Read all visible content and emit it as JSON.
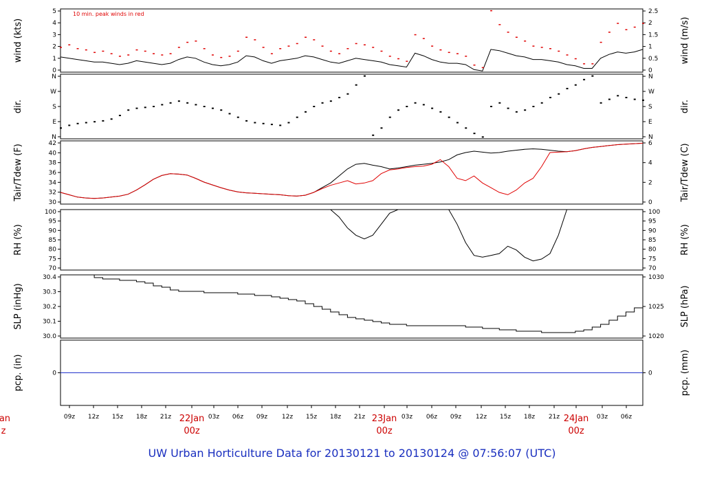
{
  "chart_data": {
    "type": "line",
    "title": "UW Urban Horticulture Data for 20130121  to  20130124 @ 07:56:07  (UTC)",
    "x_tick_labels": [
      "09z",
      "12z",
      "15z",
      "18z",
      "21z",
      "03z",
      "06z",
      "09z",
      "12z",
      "15z",
      "18z",
      "21z",
      "03z",
      "06z",
      "09z",
      "12z",
      "15z",
      "18z",
      "21z",
      "03z",
      "06z"
    ],
    "day_labels": [
      {
        "date": "22Jan",
        "hour": "00z"
      },
      {
        "date": "23Jan",
        "hour": "00z"
      },
      {
        "date": "24Jan",
        "hour": "00z"
      }
    ],
    "left_edge_label": {
      "date": "Jan",
      "hour": "z"
    },
    "panels": [
      {
        "id": "wind",
        "ylabel": "wind (kts)",
        "ylabel_right": "wind (m/s)",
        "annotation": "10 min. peak winds in red",
        "yticks": [
          "0",
          "1",
          "2",
          "3",
          "4",
          "5"
        ],
        "yticks_right": [
          "0",
          "0.5",
          "1",
          "1.5",
          "2",
          "2.5"
        ],
        "ylim": [
          0,
          5
        ],
        "series": [
          {
            "values": [
              1.2,
              1.1,
              1.0,
              0.9,
              0.8,
              0.8,
              0.7,
              0.6,
              0.7,
              0.9,
              0.8,
              0.7,
              0.6,
              0.7,
              1.0,
              1.2,
              1.1,
              0.8,
              0.6,
              0.5,
              0.6,
              0.8,
              1.3,
              1.2,
              0.9,
              0.7,
              0.9,
              1.0,
              1.1,
              1.3,
              1.2,
              1.0,
              0.8,
              0.7,
              0.9,
              1.1,
              1.0,
              0.9,
              0.8,
              0.6,
              0.5,
              0.4,
              1.5,
              1.3,
              1.0,
              0.8,
              0.7,
              0.7,
              0.6,
              0.2,
              0.1,
              1.8,
              1.7,
              1.5,
              1.3,
              1.2,
              1.0,
              1.0,
              0.9,
              0.8,
              0.6,
              0.5,
              0.3,
              0.3,
              1.1,
              1.4,
              1.6,
              1.5,
              1.6,
              1.8
            ]
          },
          {
            "values": [
              2.0,
              2.2,
              1.9,
              1.8,
              1.6,
              1.7,
              1.5,
              1.3,
              1.4,
              1.8,
              1.7,
              1.5,
              1.4,
              1.5,
              2.0,
              2.4,
              2.5,
              1.9,
              1.4,
              1.2,
              1.3,
              1.7,
              2.8,
              2.6,
              2.0,
              1.5,
              1.9,
              2.1,
              2.3,
              2.8,
              2.6,
              2.1,
              1.7,
              1.5,
              1.9,
              2.3,
              2.2,
              2.0,
              1.7,
              1.3,
              1.1,
              0.9,
              3.0,
              2.7,
              2.1,
              1.8,
              1.6,
              1.5,
              1.3,
              0.6,
              0.4,
              4.9,
              3.8,
              3.2,
              2.8,
              2.5,
              2.1,
              2.0,
              1.9,
              1.7,
              1.4,
              1.1,
              0.7,
              0.7,
              2.4,
              3.2,
              3.9,
              3.4,
              3.6,
              3.9
            ]
          }
        ]
      },
      {
        "id": "dir",
        "ylabel": "dir.",
        "ylabel_right": "dir.",
        "yticks": [
          "N",
          "E",
          "S",
          "W",
          "N"
        ],
        "ylim": [
          0,
          360
        ],
        "series": [
          {
            "values": [
              60,
              75,
              85,
              90,
              95,
              100,
              110,
              130,
              160,
              170,
              175,
              180,
              190,
              200,
              210,
              200,
              190,
              180,
              170,
              160,
              140,
              120,
              100,
              90,
              85,
              80,
              75,
              90,
              120,
              150,
              180,
              200,
              210,
              230,
              250,
              300,
              350,
              20,
              60,
              120,
              160,
              180,
              200,
              190,
              170,
              150,
              120,
              90,
              60,
              30,
              10,
              180,
              200,
              170,
              150,
              160,
              180,
              200,
              230,
              250,
              280,
              300,
              330,
              350,
              200,
              220,
              240,
              230,
              220,
              215
            ]
          }
        ]
      },
      {
        "id": "temp",
        "ylabel": "Tair/Tdew (F)",
        "ylabel_right": "Tair/Tdew (C)",
        "yticks": [
          "30",
          "32",
          "34",
          "36",
          "38",
          "40",
          "42"
        ],
        "yticks_right": [
          "0",
          "2",
          "4",
          "6"
        ],
        "ylim": [
          29.5,
          43
        ],
        "series": [
          {
            "values": [
              32.0,
              31.5,
              31.0,
              30.8,
              30.7,
              30.8,
              31.0,
              31.2,
              31.6,
              32.5,
              33.6,
              34.8,
              35.6,
              36.0,
              35.9,
              35.7,
              35.0,
              34.2,
              33.6,
              33.0,
              32.5,
              32.1,
              31.9,
              31.8,
              31.7,
              31.6,
              31.5,
              31.3,
              31.2,
              31.4,
              32.0,
              33.0,
              34.0,
              35.5,
              37.0,
              38.0,
              38.2,
              37.8,
              37.5,
              37.0,
              37.2,
              37.5,
              37.8,
              38.0,
              38.2,
              38.5,
              39.0,
              40.0,
              40.5,
              40.8,
              40.6,
              40.4,
              40.5,
              40.8,
              41.0,
              41.2,
              41.3,
              41.2,
              41.0,
              40.8,
              40.7,
              40.9,
              41.3,
              41.6,
              41.8,
              42.0,
              42.2,
              42.3,
              42.4,
              42.5
            ]
          },
          {
            "values": [
              32.0,
              31.5,
              31.0,
              30.8,
              30.7,
              30.8,
              31.0,
              31.2,
              31.6,
              32.5,
              33.6,
              34.8,
              35.6,
              36.0,
              35.9,
              35.7,
              35.0,
              34.2,
              33.6,
              33.0,
              32.5,
              32.1,
              31.9,
              31.8,
              31.7,
              31.6,
              31.5,
              31.3,
              31.2,
              31.4,
              32.0,
              32.8,
              33.5,
              34.0,
              34.5,
              33.8,
              34.0,
              34.5,
              36.0,
              36.8,
              37.0,
              37.3,
              37.5,
              37.6,
              38.0,
              39.0,
              37.5,
              35.0,
              34.5,
              35.5,
              34.0,
              33.0,
              32.0,
              31.5,
              32.5,
              34.0,
              35.0,
              37.5,
              40.5,
              40.6,
              40.7,
              40.9,
              41.3,
              41.6,
              41.8,
              42.0,
              42.2,
              42.3,
              42.4,
              42.5
            ]
          }
        ]
      },
      {
        "id": "rh",
        "ylabel": "RH (%)",
        "ylabel_right": "RH (%)",
        "yticks": [
          "70",
          "75",
          "80",
          "85",
          "90",
          "95",
          "100"
        ],
        "ylim": [
          67,
          100
        ],
        "series": [
          {
            "values": [
              100,
              100,
              100,
              100,
              100,
              100,
              100,
              100,
              100,
              100,
              100,
              100,
              100,
              100,
              100,
              100,
              100,
              100,
              100,
              100,
              100,
              100,
              100,
              100,
              100,
              100,
              100,
              100,
              100,
              100,
              100,
              100,
              100,
              96,
              90,
              86,
              84,
              86,
              92,
              98,
              100,
              100,
              100,
              100,
              100,
              100,
              100,
              92,
              82,
              75,
              74,
              75,
              76,
              80,
              78,
              74,
              72,
              73,
              76,
              86,
              100,
              100,
              100,
              100,
              100,
              100,
              100,
              100,
              100,
              100
            ]
          }
        ]
      },
      {
        "id": "slp",
        "ylabel": "SLP (inHg)",
        "ylabel_right": "SLP (hPa)",
        "yticks": [
          "30.0",
          "30.1",
          "30.2",
          "30.3",
          "30.4"
        ],
        "yticks_right": [
          "1020",
          "1025",
          "1030"
        ],
        "ylim": [
          29.99,
          30.45
        ],
        "series": [
          {
            "values": [
              30.45,
              30.45,
              30.45,
              30.45,
              30.43,
              30.42,
              30.42,
              30.41,
              30.41,
              30.4,
              30.39,
              30.37,
              30.36,
              30.34,
              30.33,
              30.33,
              30.33,
              30.32,
              30.32,
              30.32,
              30.32,
              30.31,
              30.31,
              30.3,
              30.3,
              30.29,
              30.28,
              30.27,
              30.26,
              30.24,
              30.22,
              30.2,
              30.18,
              30.16,
              30.14,
              30.13,
              30.12,
              30.11,
              30.1,
              30.09,
              30.09,
              30.08,
              30.08,
              30.08,
              30.08,
              30.08,
              30.08,
              30.08,
              30.07,
              30.07,
              30.06,
              30.06,
              30.05,
              30.05,
              30.04,
              30.04,
              30.04,
              30.03,
              30.03,
              30.03,
              30.03,
              30.04,
              30.05,
              30.07,
              30.09,
              30.12,
              30.15,
              30.18,
              30.21,
              30.24
            ]
          }
        ]
      },
      {
        "id": "pcp",
        "ylabel": "pcp. (in)",
        "ylabel_right": "pcp. (mm)",
        "yticks": [
          "0"
        ],
        "yticks_right": [
          "0"
        ],
        "ylim": [
          -1,
          1
        ],
        "series": [
          {
            "values": [
              0,
              0,
              0,
              0,
              0,
              0,
              0,
              0,
              0,
              0,
              0,
              0,
              0,
              0,
              0,
              0,
              0,
              0,
              0,
              0,
              0,
              0,
              0,
              0,
              0,
              0,
              0,
              0,
              0,
              0,
              0,
              0,
              0,
              0,
              0,
              0,
              0,
              0,
              0,
              0,
              0,
              0,
              0,
              0,
              0,
              0,
              0,
              0,
              0,
              0,
              0,
              0,
              0,
              0,
              0,
              0,
              0,
              0,
              0,
              0,
              0,
              0,
              0,
              0,
              0,
              0,
              0,
              0,
              0,
              0
            ]
          }
        ]
      }
    ],
    "colors": {
      "line": "#000000",
      "peak": "#e00000",
      "dew": "#e00000",
      "pcp": "#2233cc",
      "title": "#1a2fbf",
      "day": "#cc0000"
    }
  }
}
